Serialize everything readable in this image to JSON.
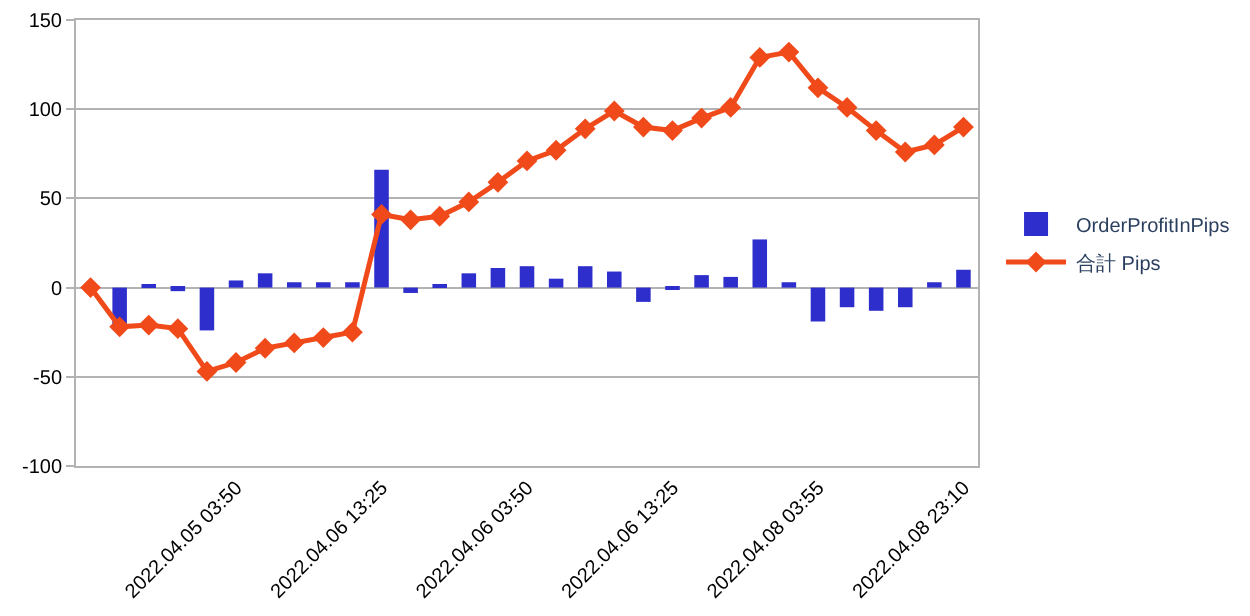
{
  "chart_data": {
    "type": "bar",
    "categories": [
      null,
      null,
      null,
      null,
      null,
      "2022.04.05 03:50",
      null,
      null,
      null,
      null,
      "2022.04.06 13:25",
      null,
      null,
      null,
      null,
      "2022.04.06 03:50",
      null,
      null,
      null,
      null,
      "2022.04.06 13:25",
      null,
      null,
      null,
      null,
      "2022.04.08 03:55",
      null,
      null,
      null,
      null,
      "2022.04.08 23:10"
    ],
    "series": [
      {
        "name": "OrderProfitInPips",
        "color": "#2e2ecc",
        "values": [
          0,
          -22,
          1,
          -2,
          -24,
          4,
          8,
          3,
          3,
          3,
          66,
          -3,
          1,
          8,
          11,
          12,
          5,
          12,
          9,
          -8,
          -1,
          7,
          6,
          27,
          3,
          -19,
          -11,
          -13,
          -11,
          3,
          10
        ]
      },
      {
        "name": "合計 Pips",
        "type": "line",
        "color": "#f04a1a",
        "values": [
          0,
          -22,
          -21,
          -23,
          -47,
          -42,
          -34,
          -31,
          -28,
          -25,
          41,
          38,
          40,
          48,
          59,
          71,
          77,
          89,
          99,
          90,
          88,
          95,
          101,
          129,
          132,
          112,
          101,
          88,
          76,
          80,
          90
        ]
      }
    ],
    "ylim": [
      -100,
      150
    ],
    "yticks": [
      -100,
      -50,
      0,
      50,
      100,
      150
    ],
    "grid": "y",
    "legend": "right",
    "marker": "diamond",
    "line_style": "solid"
  }
}
